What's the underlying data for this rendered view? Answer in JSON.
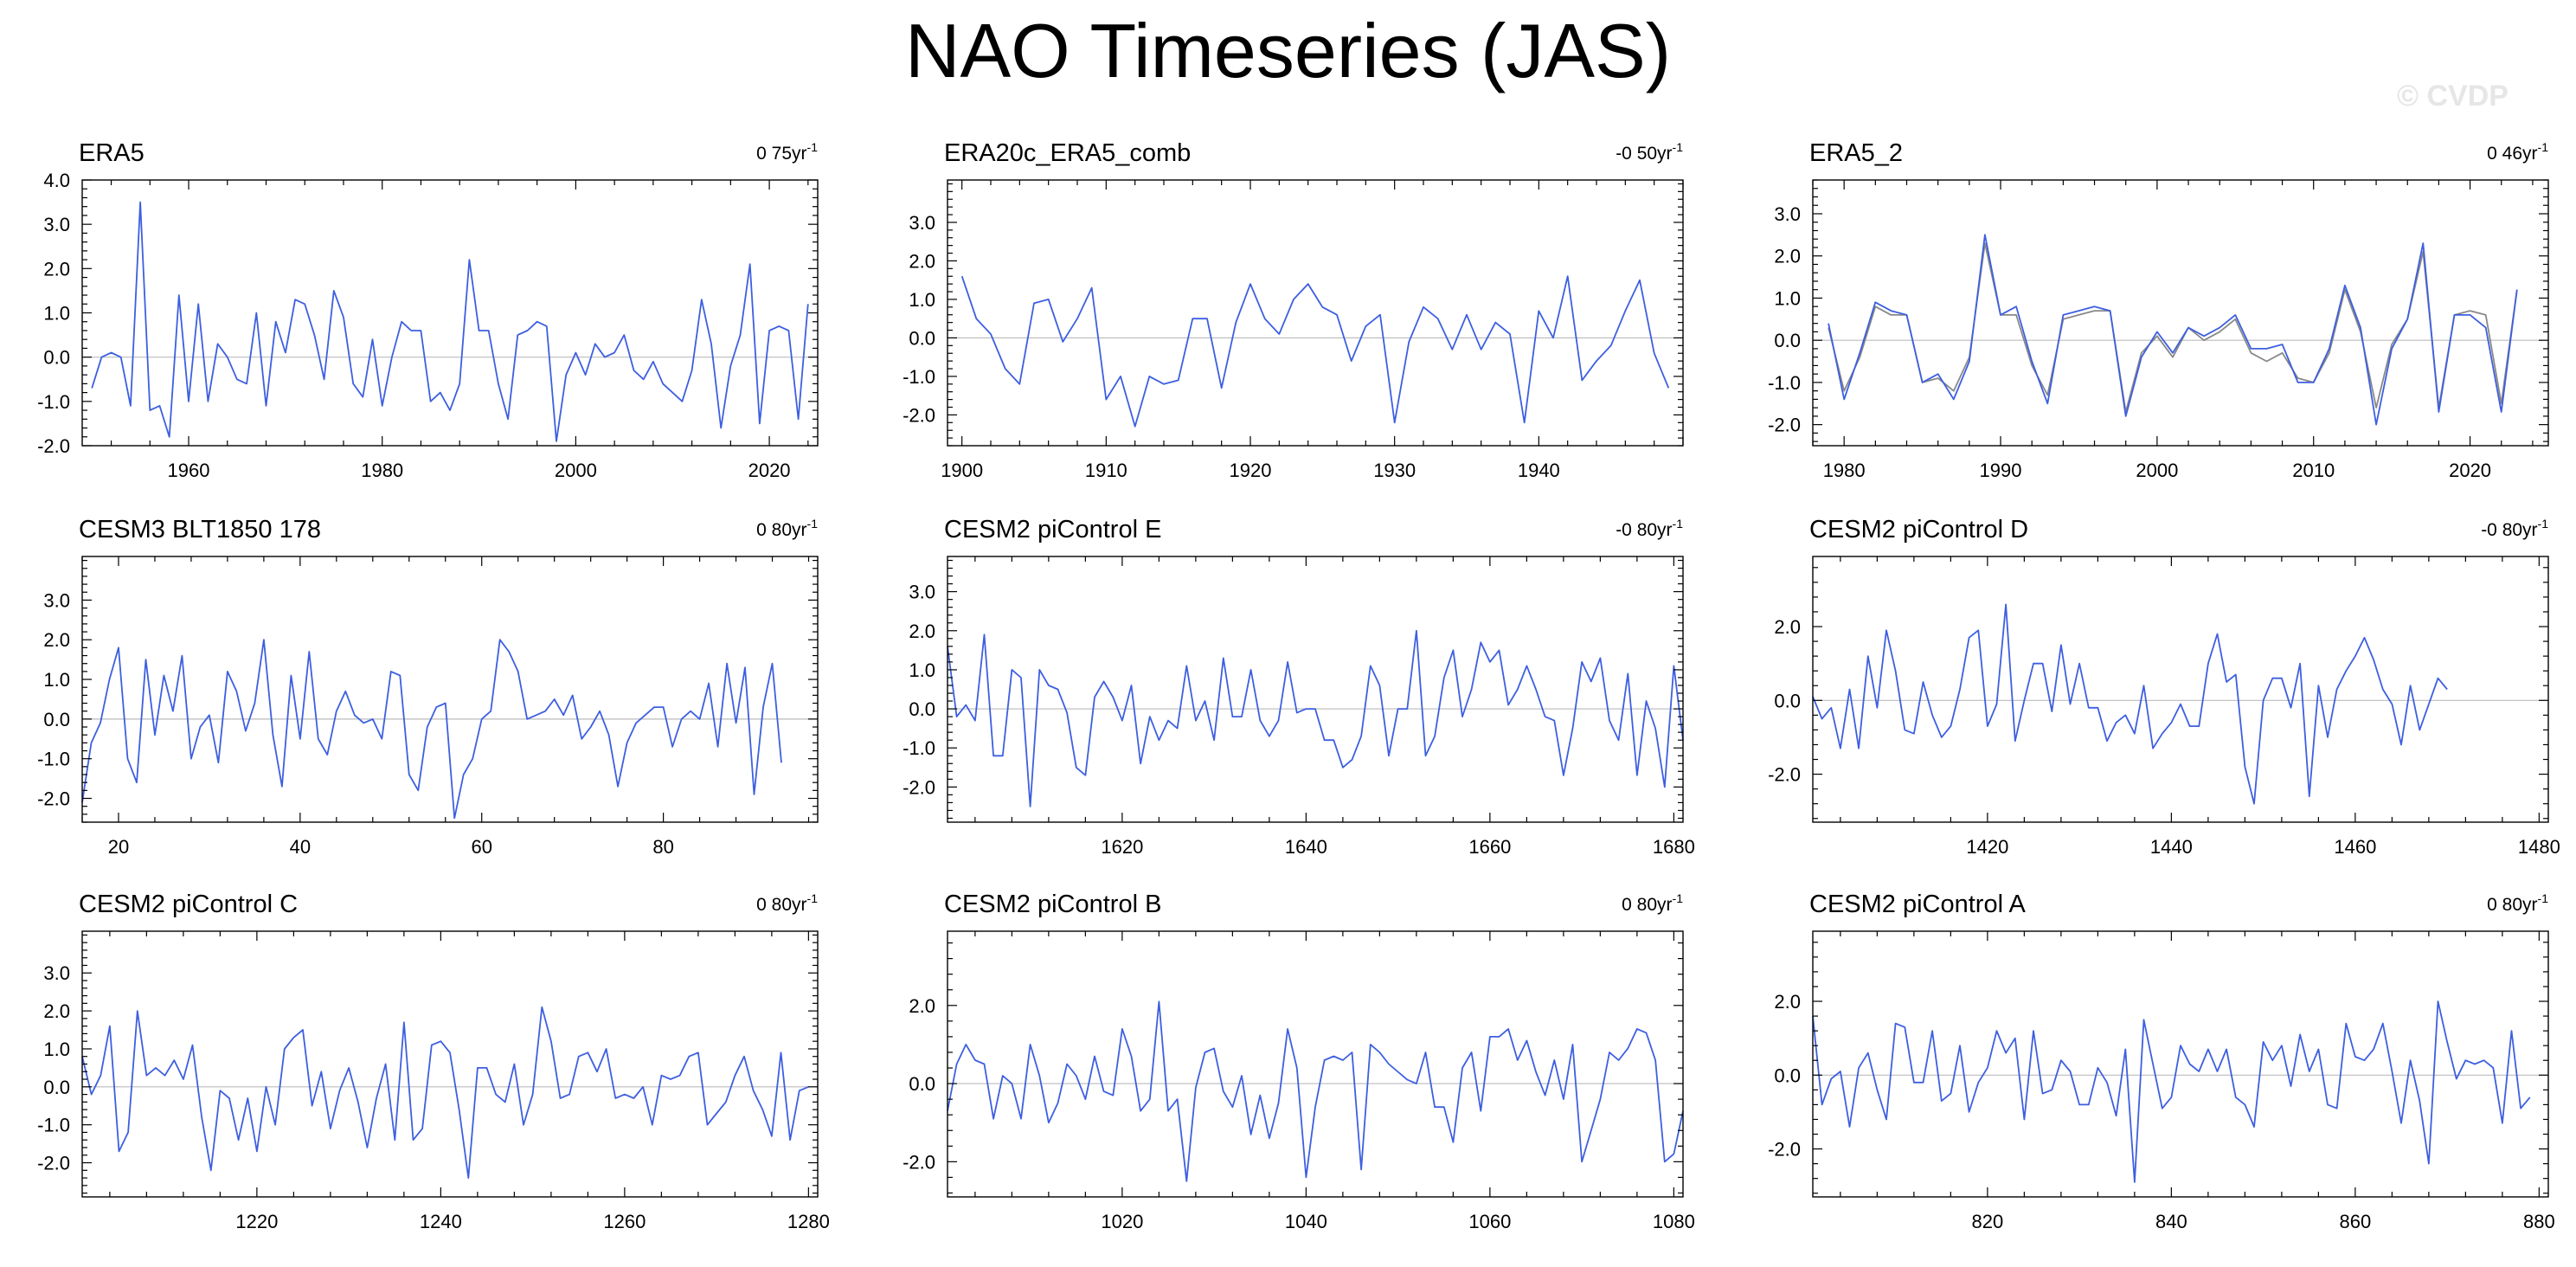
{
  "page": {
    "title": "NAO Timeseries (JAS)",
    "watermark": "© CVDP"
  },
  "chart_data": [
    {
      "type": "line",
      "title": "ERA5",
      "trend_label": "0 75yr",
      "xlim": [
        1949,
        2025
      ],
      "ylim": [
        -2.0,
        4.0
      ],
      "yticks": [
        -2.0,
        -1.0,
        0.0,
        1.0,
        2.0,
        3.0,
        4.0
      ],
      "xticks": [
        1960,
        1980,
        2000,
        2020
      ],
      "series": [
        {
          "color": "#3d5fe0",
          "x_start": 1950,
          "values": [
            -0.7,
            0.0,
            0.1,
            0.0,
            -1.1,
            3.5,
            -1.2,
            -1.1,
            -1.8,
            1.4,
            -1.0,
            1.2,
            -1.0,
            0.3,
            0.0,
            -0.5,
            -0.6,
            1.0,
            -1.1,
            0.8,
            0.1,
            1.3,
            1.2,
            0.5,
            -0.5,
            1.5,
            0.9,
            -0.6,
            -0.9,
            0.4,
            -1.1,
            0.0,
            0.8,
            0.6,
            0.6,
            -1.0,
            -0.8,
            -1.2,
            -0.6,
            2.2,
            0.6,
            0.6,
            -0.6,
            -1.4,
            0.5,
            0.6,
            0.8,
            0.7,
            -1.9,
            -0.4,
            0.1,
            -0.4,
            0.3,
            0.0,
            0.1,
            0.5,
            -0.3,
            -0.5,
            -0.1,
            -0.6,
            -0.8,
            -1.0,
            -0.3,
            1.3,
            0.3,
            -1.6,
            -0.2,
            0.5,
            2.1,
            -1.5,
            0.6,
            0.7,
            0.6,
            -1.4,
            1.2
          ]
        }
      ]
    },
    {
      "type": "line",
      "title": "ERA20c_ERA5_comb",
      "trend_label": "-0 50yr",
      "xlim": [
        1899,
        1950
      ],
      "ylim": [
        -2.8,
        4.1
      ],
      "yticks": [
        -2.0,
        -1.0,
        0.0,
        1.0,
        2.0,
        3.0
      ],
      "xticks": [
        1900,
        1910,
        1920,
        1930,
        1940
      ],
      "series": [
        {
          "color": "#3d5fe0",
          "x_start": 1900,
          "values": [
            1.6,
            0.5,
            0.1,
            -0.8,
            -1.2,
            0.9,
            1.0,
            -0.1,
            0.5,
            1.3,
            -1.6,
            -1.0,
            -2.3,
            -1.0,
            -1.2,
            -1.1,
            0.5,
            0.5,
            -1.3,
            0.4,
            1.4,
            0.5,
            0.1,
            1.0,
            1.4,
            0.8,
            0.6,
            -0.6,
            0.3,
            0.6,
            -2.2,
            -0.1,
            0.8,
            0.5,
            -0.3,
            0.6,
            -0.3,
            0.4,
            0.1,
            -2.2,
            0.7,
            0.0,
            1.6,
            -1.1,
            -0.6,
            -0.2,
            0.7,
            1.5,
            -0.4,
            -1.3
          ]
        }
      ]
    },
    {
      "type": "line",
      "title": "ERA5_2",
      "trend_label": "0 46yr",
      "xlim": [
        1978,
        2025
      ],
      "ylim": [
        -2.5,
        3.8
      ],
      "yticks": [
        -2.0,
        -1.0,
        0.0,
        1.0,
        2.0,
        3.0
      ],
      "xticks": [
        1980,
        1990,
        2000,
        2010,
        2020
      ],
      "series": [
        {
          "color": "#888888",
          "x_start": 1979,
          "values": [
            0.3,
            -1.2,
            -0.4,
            0.8,
            0.6,
            0.6,
            -1.0,
            -0.9,
            -1.2,
            -0.4,
            2.3,
            0.6,
            0.6,
            -0.6,
            -1.3,
            0.5,
            0.6,
            0.7,
            0.7,
            -1.7,
            -0.3,
            0.1,
            -0.4,
            0.3,
            0.0,
            0.2,
            0.5,
            -0.3,
            -0.5,
            -0.3,
            -0.9,
            -1.0,
            -0.3,
            1.2,
            0.2,
            -1.6,
            -0.1,
            0.5,
            2.1,
            -1.6,
            0.6,
            0.7,
            0.6,
            -1.5,
            1.2
          ]
        },
        {
          "color": "#3d5fe0",
          "x_start": 1979,
          "values": [
            0.4,
            -1.4,
            -0.3,
            0.9,
            0.7,
            0.6,
            -1.0,
            -0.8,
            -1.4,
            -0.5,
            2.5,
            0.6,
            0.8,
            -0.5,
            -1.5,
            0.6,
            0.7,
            0.8,
            0.7,
            -1.8,
            -0.4,
            0.2,
            -0.3,
            0.3,
            0.1,
            0.3,
            0.6,
            -0.2,
            -0.2,
            -0.1,
            -1.0,
            -1.0,
            -0.2,
            1.3,
            0.3,
            -2.0,
            -0.2,
            0.5,
            2.3,
            -1.7,
            0.6,
            0.6,
            0.3,
            -1.7,
            1.2
          ]
        }
      ]
    },
    {
      "type": "line",
      "title": "CESM3 BLT1850 178",
      "trend_label": "0 80yr",
      "xlim": [
        16,
        97
      ],
      "ylim": [
        -2.6,
        4.1
      ],
      "yticks": [
        -2.0,
        -1.0,
        0.0,
        1.0,
        2.0,
        3.0
      ],
      "xticks": [
        20,
        40,
        60,
        80
      ],
      "series": [
        {
          "color": "#3d5fe0",
          "x_start": 16,
          "values": [
            -2.1,
            -0.6,
            -0.1,
            1.0,
            1.8,
            -1.0,
            -1.6,
            1.5,
            -0.4,
            1.1,
            0.2,
            1.6,
            -1.0,
            -0.2,
            0.1,
            -1.1,
            1.2,
            0.7,
            -0.3,
            0.4,
            2.0,
            -0.4,
            -1.7,
            1.1,
            -0.5,
            1.7,
            -0.5,
            -0.9,
            0.2,
            0.7,
            0.1,
            -0.1,
            0.0,
            -0.5,
            1.2,
            1.1,
            -1.4,
            -1.8,
            -0.2,
            0.3,
            0.4,
            -2.5,
            -1.4,
            -1.0,
            0.0,
            0.2,
            2.0,
            1.7,
            1.2,
            0.0,
            0.1,
            0.2,
            0.5,
            0.1,
            0.6,
            -0.5,
            -0.2,
            0.2,
            -0.4,
            -1.7,
            -0.6,
            -0.1,
            0.1,
            0.3,
            0.3,
            -0.7,
            0.0,
            0.2,
            0.0,
            0.9,
            -0.7,
            1.4,
            -0.1,
            1.3,
            -1.9,
            0.3,
            1.4,
            -1.1
          ]
        }
      ]
    },
    {
      "type": "line",
      "title": "CESM2 piControl E",
      "trend_label": "-0 80yr",
      "xlim": [
        1601,
        1681
      ],
      "ylim": [
        -2.9,
        3.9
      ],
      "yticks": [
        -2.0,
        -1.0,
        0.0,
        1.0,
        2.0,
        3.0
      ],
      "xticks": [
        1620,
        1640,
        1660,
        1680
      ],
      "series": [
        {
          "color": "#3d5fe0",
          "x_start": 1601,
          "values": [
            1.6,
            -0.2,
            0.1,
            -0.3,
            1.9,
            -1.2,
            -1.2,
            1.0,
            0.8,
            -2.5,
            1.0,
            0.6,
            0.5,
            -0.1,
            -1.5,
            -1.7,
            0.3,
            0.7,
            0.3,
            -0.3,
            0.6,
            -1.4,
            -0.2,
            -0.8,
            -0.3,
            -0.5,
            1.1,
            -0.3,
            0.2,
            -0.8,
            1.3,
            -0.2,
            -0.2,
            1.0,
            -0.3,
            -0.7,
            -0.3,
            1.2,
            -0.1,
            0.0,
            0.0,
            -0.8,
            -0.8,
            -1.5,
            -1.3,
            -0.7,
            1.1,
            0.6,
            -1.2,
            0.0,
            0.0,
            2.0,
            -1.2,
            -0.7,
            0.8,
            1.5,
            -0.2,
            0.5,
            1.7,
            1.2,
            1.5,
            0.1,
            0.5,
            1.1,
            0.5,
            -0.2,
            -0.3,
            -1.7,
            -0.5,
            1.2,
            0.7,
            1.3,
            -0.3,
            -0.8,
            0.9,
            -1.7,
            0.2,
            -0.5,
            -2.0,
            1.1,
            -0.8
          ]
        }
      ]
    },
    {
      "type": "line",
      "title": "CESM2 piControl D",
      "trend_label": "-0 80yr",
      "xlim": [
        1401,
        1481
      ],
      "ylim": [
        -3.3,
        3.9
      ],
      "yticks": [
        -2.0,
        0.0,
        2.0
      ],
      "xticks": [
        1420,
        1440,
        1460,
        1480
      ],
      "series": [
        {
          "color": "#3d5fe0",
          "x_start": 1401,
          "values": [
            0.1,
            -0.5,
            -0.2,
            -1.3,
            0.3,
            -1.3,
            1.2,
            -0.2,
            1.9,
            0.8,
            -0.8,
            -0.9,
            0.5,
            -0.4,
            -1.0,
            -0.7,
            0.3,
            1.7,
            1.9,
            -0.7,
            -0.1,
            2.6,
            -1.1,
            0.0,
            1.0,
            1.0,
            -0.3,
            1.5,
            -0.1,
            1.0,
            -0.2,
            -0.2,
            -1.1,
            -0.6,
            -0.4,
            -0.9,
            0.4,
            -1.3,
            -0.9,
            -0.6,
            -0.1,
            -0.7,
            -0.7,
            1.0,
            1.8,
            0.5,
            0.7,
            -1.8,
            -2.8,
            0.0,
            0.6,
            0.6,
            -0.2,
            1.0,
            -2.6,
            0.4,
            -1.0,
            0.3,
            0.8,
            1.2,
            1.7,
            1.1,
            0.3,
            -0.1,
            -1.2,
            0.4,
            -0.8,
            -0.1,
            0.6,
            0.3
          ]
        }
      ]
    },
    {
      "type": "line",
      "title": "CESM2 piControl C",
      "trend_label": "0 80yr",
      "xlim": [
        1201,
        1281
      ],
      "ylim": [
        -2.9,
        4.1
      ],
      "yticks": [
        -2.0,
        -1.0,
        0.0,
        1.0,
        2.0,
        3.0
      ],
      "xticks": [
        1220,
        1240,
        1260,
        1280
      ],
      "series": [
        {
          "color": "#3d5fe0",
          "x_start": 1201,
          "values": [
            0.8,
            -0.2,
            0.3,
            1.6,
            -1.7,
            -1.2,
            2.0,
            0.3,
            0.5,
            0.3,
            0.7,
            0.2,
            1.1,
            -0.8,
            -2.2,
            -0.1,
            -0.3,
            -1.4,
            -0.3,
            -1.7,
            0.0,
            -1.0,
            1.0,
            1.3,
            1.5,
            -0.5,
            0.4,
            -1.1,
            -0.1,
            0.5,
            -0.4,
            -1.6,
            -0.3,
            0.6,
            -1.4,
            1.7,
            -1.4,
            -1.1,
            1.1,
            1.2,
            0.9,
            -0.6,
            -2.4,
            0.5,
            0.5,
            -0.2,
            -0.4,
            0.6,
            -1.0,
            -0.2,
            2.1,
            1.2,
            -0.3,
            -0.2,
            0.8,
            0.9,
            0.4,
            1.0,
            -0.3,
            -0.2,
            -0.3,
            0.0,
            -1.0,
            0.3,
            0.2,
            0.3,
            0.8,
            0.9,
            -1.0,
            -0.7,
            -0.4,
            0.3,
            0.8,
            -0.1,
            -0.6,
            -1.3,
            0.9,
            -1.4,
            -0.1,
            0.0
          ]
        }
      ]
    },
    {
      "type": "line",
      "title": "CESM2 piControl B",
      "trend_label": "0 80yr",
      "xlim": [
        1001,
        1081
      ],
      "ylim": [
        -2.9,
        3.9
      ],
      "yticks": [
        -2.0,
        0.0,
        2.0
      ],
      "xticks": [
        1020,
        1040,
        1060,
        1080
      ],
      "series": [
        {
          "color": "#3d5fe0",
          "x_start": 1001,
          "values": [
            -0.7,
            0.5,
            1.0,
            0.6,
            0.5,
            -0.9,
            0.2,
            0.0,
            -0.9,
            1.0,
            0.2,
            -1.0,
            -0.5,
            0.5,
            0.2,
            -0.4,
            0.7,
            -0.2,
            -0.3,
            1.4,
            0.7,
            -0.7,
            -0.4,
            2.1,
            -0.7,
            -0.4,
            -2.5,
            -0.1,
            0.8,
            0.9,
            -0.2,
            -0.6,
            0.2,
            -1.3,
            -0.3,
            -1.4,
            -0.5,
            1.4,
            0.4,
            -2.4,
            -0.6,
            0.6,
            0.7,
            0.6,
            0.8,
            -2.2,
            1.0,
            0.8,
            0.5,
            0.3,
            0.1,
            0.0,
            0.8,
            -0.6,
            -0.6,
            -1.5,
            0.4,
            0.8,
            -0.7,
            1.2,
            1.2,
            1.4,
            0.6,
            1.1,
            0.3,
            -0.3,
            0.6,
            -0.4,
            1.0,
            -2.0,
            -1.2,
            -0.4,
            0.8,
            0.6,
            0.9,
            1.4,
            1.3,
            0.6,
            -2.0,
            -1.8,
            -0.7
          ]
        }
      ]
    },
    {
      "type": "line",
      "title": "CESM2 piControl A",
      "trend_label": "0 80yr",
      "xlim": [
        801,
        881
      ],
      "ylim": [
        -3.3,
        3.9
      ],
      "yticks": [
        -2.0,
        0.0,
        2.0
      ],
      "xticks": [
        820,
        840,
        860,
        880
      ],
      "series": [
        {
          "color": "#3d5fe0",
          "x_start": 801,
          "values": [
            1.6,
            -0.8,
            -0.1,
            0.1,
            -1.4,
            0.2,
            0.6,
            -0.4,
            -1.2,
            1.4,
            1.3,
            -0.2,
            -0.2,
            1.2,
            -0.7,
            -0.5,
            0.8,
            -1.0,
            -0.2,
            0.2,
            1.2,
            0.6,
            1.0,
            -1.2,
            1.2,
            -0.5,
            -0.4,
            0.4,
            0.1,
            -0.8,
            -0.8,
            0.2,
            -0.2,
            -1.1,
            0.7,
            -2.9,
            1.5,
            0.3,
            -0.9,
            -0.6,
            0.8,
            0.3,
            0.1,
            0.7,
            0.1,
            0.7,
            -0.6,
            -0.8,
            -1.4,
            0.9,
            0.4,
            0.8,
            -0.3,
            1.1,
            0.1,
            0.7,
            -0.8,
            -0.9,
            1.4,
            0.5,
            0.4,
            0.7,
            1.4,
            0.1,
            -1.3,
            0.4,
            -0.7,
            -2.4,
            2.0,
            0.9,
            -0.1,
            0.4,
            0.3,
            0.4,
            0.2,
            -1.3,
            1.2,
            -0.9,
            -0.6
          ]
        }
      ]
    }
  ]
}
